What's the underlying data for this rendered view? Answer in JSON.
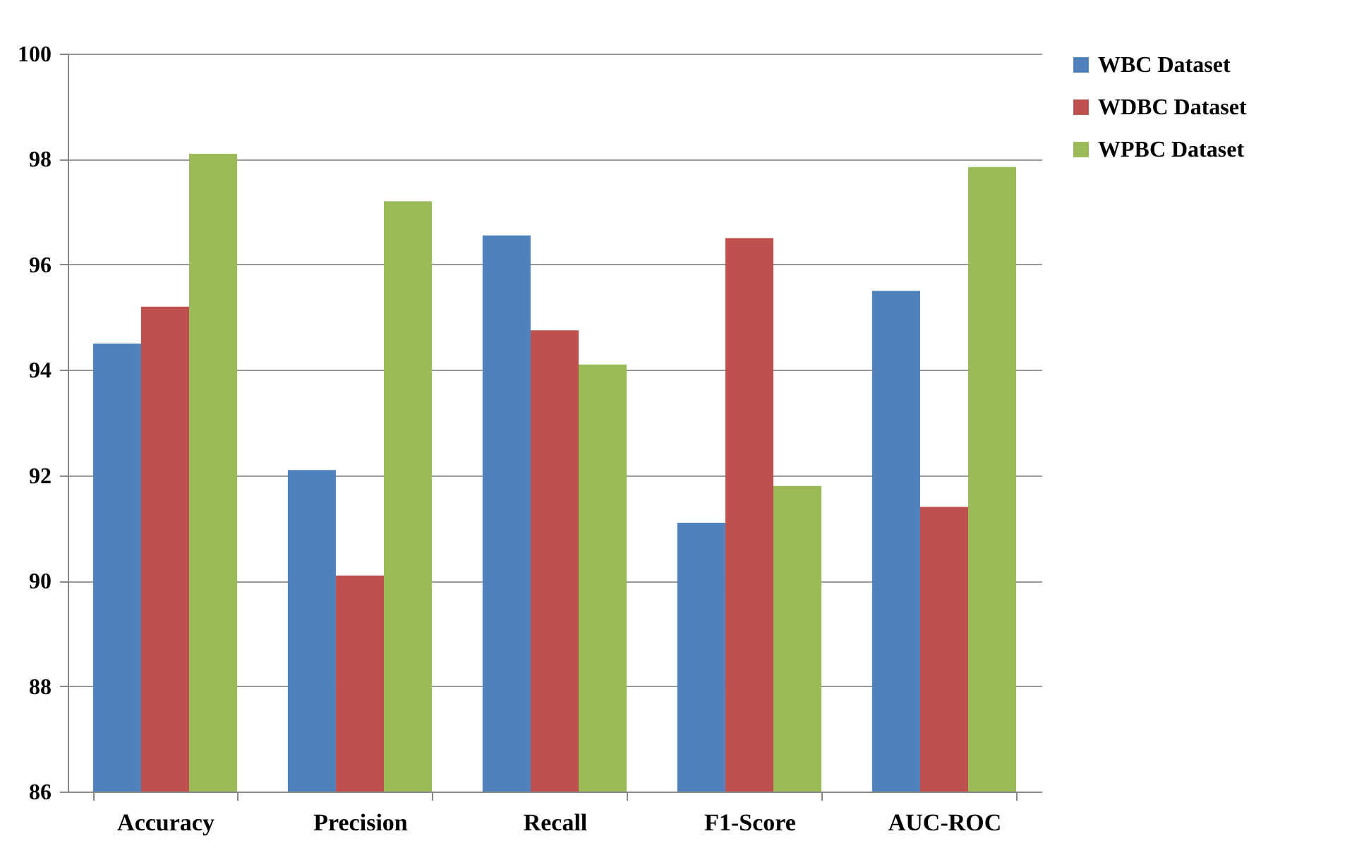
{
  "chart_data": {
    "type": "bar",
    "categories": [
      "Accuracy",
      "Precision",
      "Recall",
      "F1-Score",
      "AUC-ROC"
    ],
    "series": [
      {
        "name": "WBC Dataset",
        "color": "#4f81bd",
        "values": [
          94.5,
          92.1,
          96.55,
          91.1,
          95.5
        ]
      },
      {
        "name": "WDBC Dataset",
        "color": "#c0504d",
        "values": [
          95.2,
          90.1,
          94.75,
          96.5,
          91.4
        ]
      },
      {
        "name": "WPBC Dataset",
        "color": "#9bbb59",
        "values": [
          98.1,
          97.2,
          94.1,
          91.8,
          97.85
        ]
      }
    ],
    "ylim": [
      86,
      100
    ],
    "yticks": [
      86,
      88,
      90,
      92,
      94,
      96,
      98,
      100
    ],
    "grid": "y",
    "legend": "right"
  }
}
